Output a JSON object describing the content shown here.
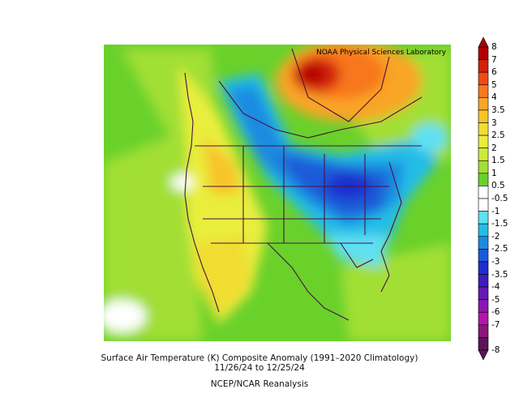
{
  "map": {
    "credit": "NOAA Physical Sciences Laboratory",
    "region": "North America"
  },
  "colorbar": {
    "labels": [
      "8",
      "7",
      "6",
      "5",
      "4",
      "3.5",
      "3",
      "2.5",
      "2",
      "1.5",
      "1",
      "0.5",
      "-0.5",
      "-1",
      "-1.5",
      "-2",
      "-2.5",
      "-3",
      "-3.5",
      "-4",
      "-5",
      "-6",
      "-7",
      "-8"
    ],
    "colors": [
      "#b30000",
      "#d42008",
      "#ef4a14",
      "#f8771d",
      "#f9a526",
      "#f8c42a",
      "#f1dd33",
      "#e9ee3e",
      "#cdea3b",
      "#a2df34",
      "#6ad12b",
      "#ffffff",
      "#ffffff",
      "#5fe0f3",
      "#23bde8",
      "#1b8be0",
      "#1a5ad8",
      "#1c2fcf",
      "#3e1cbb",
      "#6419b3",
      "#8b16b5",
      "#b415ad",
      "#8a1679",
      "#5a1456"
    ]
  },
  "caption": {
    "line1": "Surface Air Temperature (K) Composite Anomaly (1991–2020 Climatology)",
    "line2": "11/26/24  to 12/25/24",
    "line3": "NCEP/NCAR Reanalysis"
  }
}
